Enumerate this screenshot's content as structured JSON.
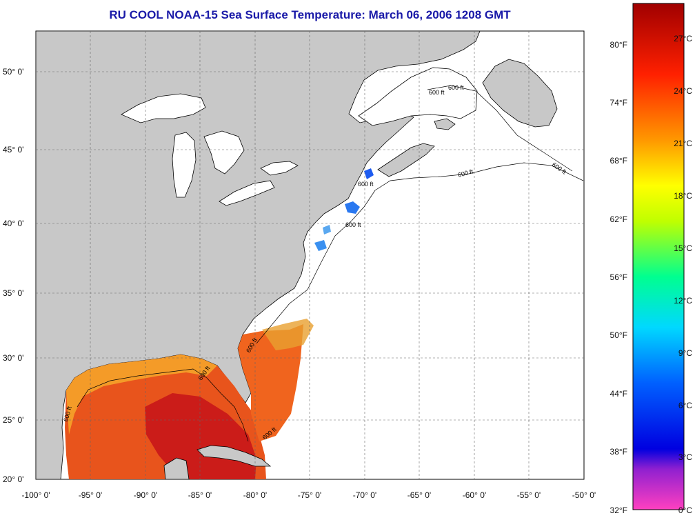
{
  "title": "RU COOL  NOAA-15  Sea Surface Temperature:  March 06, 2006 1208 GMT",
  "lat_labels": [
    "50° 0'",
    "45° 0'",
    "40° 0'",
    "35° 0'",
    "30° 0'",
    "25° 0'",
    "20° 0'"
  ],
  "lon_labels": [
    "-100° 0'",
    "-95° 0'",
    "-90° 0'",
    "-85° 0'",
    "-80° 0'",
    "-75° 0'",
    "-70° 0'",
    "-65° 0'",
    "-60° 0'",
    "-55° 0'",
    "-50° 0'"
  ],
  "contour_labels": [
    "600 ft",
    "600 ft",
    "600 ft",
    "600 ft",
    "600 ft",
    "600 ft",
    "600 ft",
    "600 ft",
    "600 ft",
    "600 ft"
  ],
  "colorbar": {
    "fahrenheit": [
      "80°F",
      "74°F",
      "68°F",
      "62°F",
      "56°F",
      "50°F",
      "44°F",
      "38°F",
      "32°F"
    ],
    "celsius": [
      "27°C",
      "24°C",
      "21°C",
      "18°C",
      "15°C",
      "12°C",
      "9°C",
      "6°C",
      "3°C",
      "0°C"
    ]
  },
  "colors": {
    "land": "#c8c8c8",
    "ocean_nodata": "#ffffff",
    "title": "#1a1aa8",
    "warm_sst": "#e64418",
    "hot_sst": "#c81414",
    "cold_sst": "#1e5cf0"
  }
}
